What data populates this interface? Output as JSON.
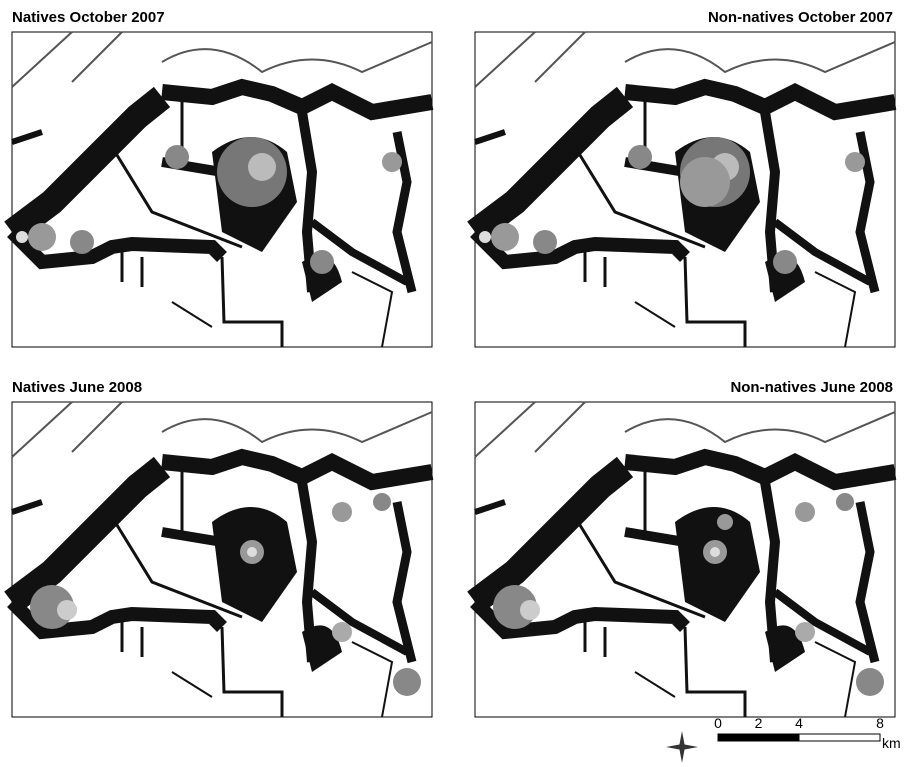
{
  "panels": [
    {
      "title": "Natives October 2007"
    },
    {
      "title": "Non-natives October 2007"
    },
    {
      "title": "Natives June 2008"
    },
    {
      "title": "Non-natives June 2008"
    }
  ],
  "scale_bar": {
    "ticks": [
      0,
      2,
      4,
      8
    ],
    "unit": "km"
  }
}
